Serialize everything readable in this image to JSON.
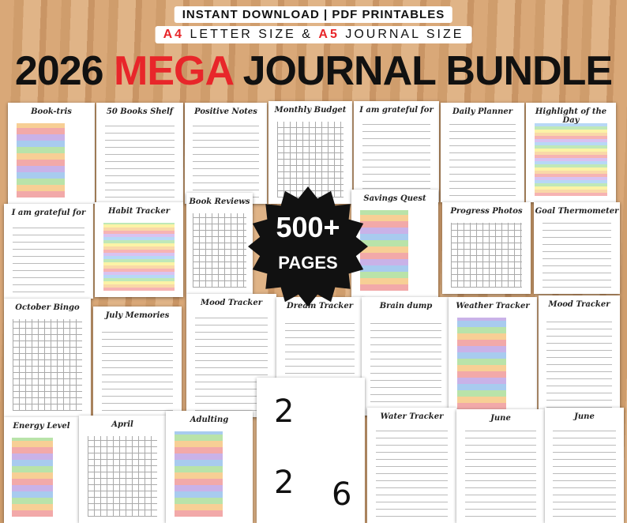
{
  "header": {
    "line1": "INSTANT DOWNLOAD | PDF PRINTABLES",
    "line2": {
      "a4": "A4",
      "mid": "LETTER SIZE &",
      "a5": "A5",
      "end": "JOURNAL SIZE"
    },
    "title": {
      "year": "2026",
      "mega": "MEGA",
      "rest": "JOURNAL BUNDLE"
    }
  },
  "badge": {
    "count": "500+",
    "label": "PAGES"
  },
  "pages": [
    {
      "title": "Book-tris"
    },
    {
      "title": "50 Books Shelf"
    },
    {
      "title": "Positive Notes"
    },
    {
      "title": "Monthly Budget"
    },
    {
      "title": "I am grateful for"
    },
    {
      "title": "Daily Planner"
    },
    {
      "title": "Highlight of the Day"
    },
    {
      "title": "I am grateful for"
    },
    {
      "title": "Habit Tracker"
    },
    {
      "title": "Book Reviews"
    },
    {
      "title": "Savings Quest"
    },
    {
      "title": "Progress Photos"
    },
    {
      "title": "Goal Thermometer"
    },
    {
      "title": "October Bingo"
    },
    {
      "title": "July Memories"
    },
    {
      "title": "Mood Tracker"
    },
    {
      "title": "Dream Tracker"
    },
    {
      "title": "Brain dump"
    },
    {
      "title": "Weather Tracker"
    },
    {
      "title": "Mood Tracker"
    },
    {
      "title": "Energy Level"
    },
    {
      "title": "April"
    },
    {
      "title": "Adulting"
    },
    {
      "digits": [
        "2",
        "2",
        "6"
      ]
    },
    {
      "title": "Water Tracker"
    },
    {
      "title": "June"
    },
    {
      "title": "June"
    }
  ]
}
